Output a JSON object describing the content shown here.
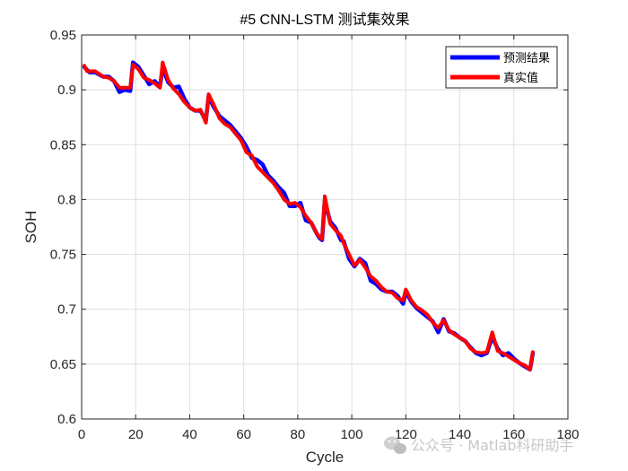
{
  "chart_data": {
    "type": "line",
    "title": "#5 CNN-LSTM 测试集效果",
    "xlabel": "Cycle",
    "ylabel": "SOH",
    "xlim": [
      0,
      180
    ],
    "ylim": [
      0.6,
      0.95
    ],
    "xticks": [
      0,
      20,
      40,
      60,
      80,
      100,
      120,
      140,
      160,
      180
    ],
    "yticks": [
      0.6,
      0.65,
      0.7,
      0.75,
      0.8,
      0.85,
      0.9,
      0.95
    ],
    "grid": true,
    "legend_position": "top-right",
    "series": [
      {
        "name": "预测结果",
        "color": "#0000ff",
        "x": [
          1,
          2,
          3,
          5,
          8,
          10,
          12,
          14,
          16,
          18,
          19,
          21,
          23,
          25,
          27,
          29,
          30,
          32,
          34,
          36,
          38,
          40,
          42,
          44,
          46,
          47,
          49,
          51,
          53,
          55,
          57,
          59,
          61,
          63,
          65,
          67,
          69,
          71,
          73,
          75,
          77,
          79,
          81,
          83,
          85,
          87,
          88,
          89,
          90,
          92,
          94,
          96,
          97,
          99,
          101,
          103,
          105,
          107,
          109,
          111,
          113,
          115,
          117,
          119,
          120,
          122,
          124,
          126,
          128,
          130,
          132,
          134,
          136,
          138,
          140,
          142,
          144,
          146,
          148,
          150,
          152,
          154,
          156,
          158,
          160,
          162,
          164,
          166,
          167
        ],
        "y": [
          0.921,
          0.918,
          0.916,
          0.916,
          0.912,
          0.912,
          0.908,
          0.898,
          0.9,
          0.899,
          0.925,
          0.921,
          0.913,
          0.905,
          0.908,
          0.903,
          0.92,
          0.907,
          0.902,
          0.903,
          0.892,
          0.884,
          0.881,
          0.881,
          0.872,
          0.894,
          0.884,
          0.876,
          0.872,
          0.868,
          0.862,
          0.856,
          0.848,
          0.838,
          0.836,
          0.832,
          0.822,
          0.817,
          0.811,
          0.806,
          0.794,
          0.794,
          0.797,
          0.781,
          0.779,
          0.769,
          0.765,
          0.763,
          0.799,
          0.78,
          0.774,
          0.763,
          0.762,
          0.746,
          0.739,
          0.746,
          0.742,
          0.726,
          0.723,
          0.718,
          0.716,
          0.716,
          0.712,
          0.705,
          0.716,
          0.707,
          0.701,
          0.697,
          0.693,
          0.689,
          0.679,
          0.691,
          0.68,
          0.678,
          0.674,
          0.671,
          0.665,
          0.66,
          0.658,
          0.66,
          0.675,
          0.664,
          0.658,
          0.66,
          0.655,
          0.651,
          0.648,
          0.645,
          0.66
        ]
      },
      {
        "name": "真实值",
        "color": "#ff0000",
        "x": [
          1,
          2,
          3,
          5,
          8,
          10,
          12,
          14,
          16,
          18,
          19,
          21,
          23,
          25,
          27,
          29,
          30,
          32,
          34,
          36,
          38,
          40,
          42,
          44,
          46,
          47,
          49,
          51,
          53,
          55,
          57,
          59,
          61,
          63,
          65,
          67,
          69,
          71,
          73,
          75,
          77,
          79,
          81,
          83,
          85,
          87,
          88,
          89,
          90,
          92,
          94,
          96,
          97,
          99,
          101,
          103,
          105,
          107,
          109,
          111,
          113,
          115,
          117,
          119,
          120,
          122,
          124,
          126,
          128,
          130,
          132,
          134,
          136,
          138,
          140,
          142,
          144,
          146,
          148,
          150,
          152,
          154,
          156,
          158,
          160,
          162,
          164,
          166,
          167
        ],
        "y": [
          0.922,
          0.917,
          0.917,
          0.917,
          0.912,
          0.911,
          0.908,
          0.902,
          0.902,
          0.902,
          0.923,
          0.919,
          0.911,
          0.909,
          0.906,
          0.902,
          0.925,
          0.909,
          0.901,
          0.896,
          0.889,
          0.884,
          0.881,
          0.882,
          0.87,
          0.896,
          0.886,
          0.874,
          0.869,
          0.866,
          0.86,
          0.854,
          0.843,
          0.84,
          0.83,
          0.825,
          0.82,
          0.815,
          0.808,
          0.8,
          0.796,
          0.797,
          0.793,
          0.785,
          0.779,
          0.769,
          0.766,
          0.764,
          0.803,
          0.778,
          0.772,
          0.767,
          0.76,
          0.75,
          0.74,
          0.745,
          0.738,
          0.73,
          0.726,
          0.72,
          0.716,
          0.715,
          0.71,
          0.708,
          0.718,
          0.708,
          0.702,
          0.699,
          0.695,
          0.688,
          0.683,
          0.69,
          0.681,
          0.677,
          0.674,
          0.671,
          0.664,
          0.661,
          0.66,
          0.661,
          0.679,
          0.662,
          0.66,
          0.657,
          0.654,
          0.651,
          0.649,
          0.645,
          0.661
        ]
      }
    ]
  },
  "watermark": {
    "icon": "wechat-icon",
    "text": "公众号 · Matlab科研助手"
  }
}
